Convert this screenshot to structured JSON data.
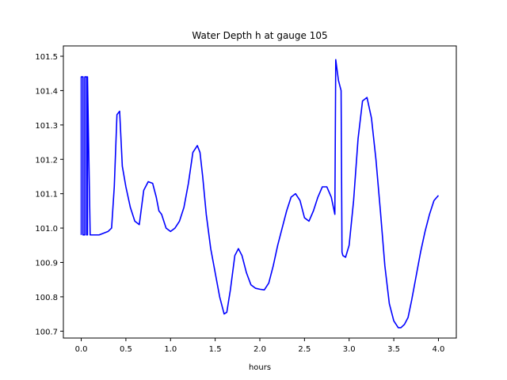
{
  "chart_data": {
    "type": "line",
    "title": "Water Depth h at gauge 105",
    "xlabel": "hours",
    "ylabel": "",
    "xlim": [
      -0.2,
      4.2
    ],
    "ylim": [
      100.68,
      101.53
    ],
    "xticks": [
      0.0,
      0.5,
      1.0,
      1.5,
      2.0,
      2.5,
      3.0,
      3.5,
      4.0
    ],
    "xtick_labels": [
      "0.0",
      "0.5",
      "1.0",
      "1.5",
      "2.0",
      "2.5",
      "3.0",
      "3.5",
      "4.0"
    ],
    "yticks": [
      100.7,
      100.8,
      100.9,
      101.0,
      101.1,
      101.2,
      101.3,
      101.4,
      101.5
    ],
    "ytick_labels": [
      "100.7",
      "100.8",
      "100.9",
      "101.0",
      "101.1",
      "101.2",
      "101.3",
      "101.4",
      "101.5"
    ],
    "grid": false,
    "series": [
      {
        "color": "#0000ff",
        "x": [
          0.0,
          0.0,
          0.02,
          0.02,
          0.04,
          0.04,
          0.06,
          0.06,
          0.07,
          0.07,
          0.1,
          0.2,
          0.3,
          0.34,
          0.37,
          0.4,
          0.43,
          0.46,
          0.5,
          0.55,
          0.6,
          0.65,
          0.7,
          0.75,
          0.8,
          0.84,
          0.87,
          0.9,
          0.95,
          1.0,
          1.05,
          1.1,
          1.15,
          1.2,
          1.25,
          1.3,
          1.33,
          1.36,
          1.4,
          1.45,
          1.5,
          1.55,
          1.6,
          1.63,
          1.67,
          1.72,
          1.76,
          1.8,
          1.85,
          1.9,
          1.95,
          2.0,
          2.05,
          2.1,
          2.15,
          2.2,
          2.25,
          2.3,
          2.35,
          2.4,
          2.45,
          2.5,
          2.55,
          2.6,
          2.65,
          2.7,
          2.75,
          2.8,
          2.84,
          2.85,
          2.85,
          2.88,
          2.91,
          2.92,
          2.93,
          2.96,
          3.0,
          3.05,
          3.1,
          3.15,
          3.2,
          3.25,
          3.3,
          3.35,
          3.4,
          3.45,
          3.5,
          3.55,
          3.58,
          3.62,
          3.66,
          3.7,
          3.75,
          3.8,
          3.85,
          3.9,
          3.95,
          4.0
        ],
        "y": [
          100.98,
          101.44,
          101.44,
          100.98,
          100.98,
          101.44,
          101.44,
          100.98,
          100.98,
          101.44,
          100.98,
          100.98,
          100.99,
          101.0,
          101.12,
          101.33,
          101.34,
          101.18,
          101.12,
          101.06,
          101.02,
          101.01,
          101.11,
          101.135,
          101.13,
          101.09,
          101.05,
          101.04,
          101.0,
          100.99,
          101.0,
          101.02,
          101.06,
          101.13,
          101.22,
          101.24,
          101.22,
          101.15,
          101.04,
          100.94,
          100.87,
          100.8,
          100.75,
          100.755,
          100.82,
          100.92,
          100.94,
          100.92,
          100.87,
          100.835,
          100.825,
          100.822,
          100.82,
          100.84,
          100.89,
          100.95,
          101.0,
          101.05,
          101.09,
          101.1,
          101.08,
          101.03,
          101.02,
          101.05,
          101.09,
          101.12,
          101.12,
          101.09,
          101.04,
          101.49,
          101.49,
          101.43,
          101.4,
          100.93,
          100.92,
          100.915,
          100.95,
          101.08,
          101.26,
          101.37,
          101.38,
          101.32,
          101.2,
          101.05,
          100.89,
          100.78,
          100.73,
          100.71,
          100.71,
          100.72,
          100.74,
          100.79,
          100.86,
          100.93,
          100.99,
          101.04,
          101.08,
          101.095
        ]
      }
    ]
  }
}
